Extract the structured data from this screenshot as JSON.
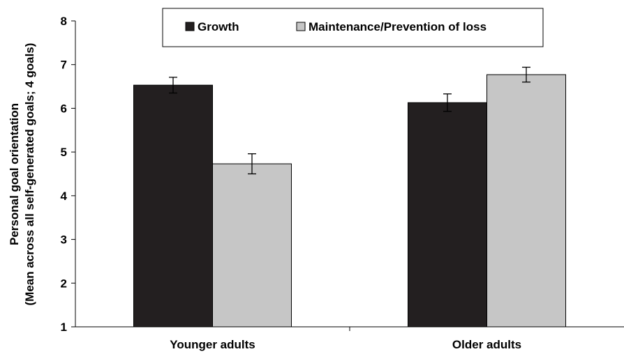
{
  "chart_data": {
    "type": "bar",
    "categories": [
      "Younger adults",
      "Older adults"
    ],
    "series": [
      {
        "name": "Growth",
        "values": [
          6.53,
          6.13
        ],
        "errors": [
          0.18,
          0.2
        ],
        "color": "#231f20"
      },
      {
        "name": "Maintenance/Prevention of loss",
        "values": [
          4.73,
          6.77
        ],
        "errors": [
          0.23,
          0.17
        ],
        "color": "#c6c6c6"
      }
    ],
    "title": "",
    "xlabel": "",
    "ylabel_lines": [
      "Personal goal orientation",
      "(Mean across all self-generated goals; 4 goals)"
    ],
    "ylim": [
      1,
      8
    ],
    "yticks": [
      1,
      2,
      3,
      4,
      5,
      6,
      7,
      8
    ],
    "grid": false,
    "legend_position": "top"
  }
}
